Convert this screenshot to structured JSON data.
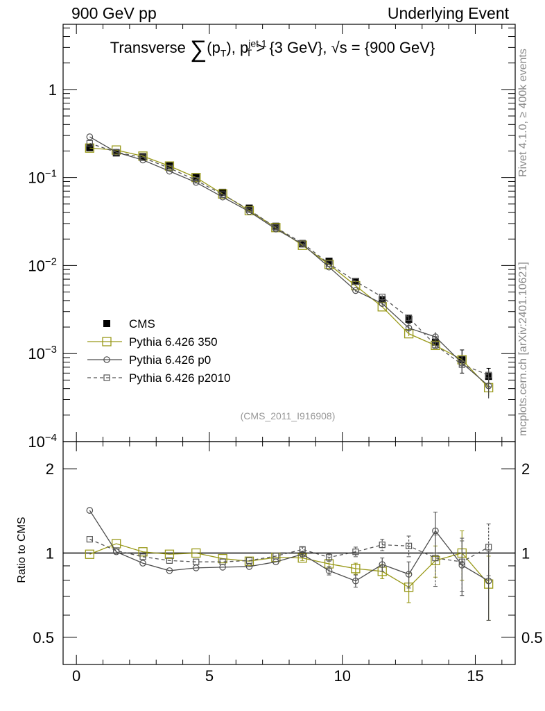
{
  "header": {
    "left": "900 GeV pp",
    "right": "Underlying Event"
  },
  "side_labels": {
    "rivet": "Rivet 4.1.0, ≥ 400k events",
    "mcplots": "mcplots.cern.ch [arXiv:2401.10621]"
  },
  "title": {
    "prefix": "Transverse",
    "sigma": "∑",
    "paren_open": "(p",
    "sub_t1": "T",
    "paren_close": "), p",
    "sup_jet": "jet 1",
    "sub_t2": "T",
    "suffix": " > {3 GeV}, √s = {900 GeV}"
  },
  "analysis_id": "(CMS_2011_I916908)",
  "chart_data": {
    "type": "line",
    "title": "Transverse ∑(p_T), p_T^jet 1 > {3 GeV}, √s = {900 GeV}",
    "xlim": [
      -0.5,
      16.5
    ],
    "x_ticks": [
      0,
      5,
      10,
      15
    ],
    "x_tick_labels": [
      "0",
      "5",
      "10",
      "15"
    ],
    "x": [
      0.5,
      1.5,
      2.5,
      3.5,
      4.5,
      5.5,
      6.5,
      7.5,
      8.5,
      9.5,
      10.5,
      11.5,
      12.5,
      13.5,
      14.5,
      15.5
    ],
    "main_panel": {
      "yscale": "log",
      "ylim": [
        0.0001,
        5.5
      ],
      "y_ticks": [
        0.0001,
        0.001,
        0.01,
        0.1,
        1
      ],
      "y_tick_labels": [
        "10−4",
        "10−3",
        "10−2",
        "10−1",
        "1"
      ],
      "legend_position": "bottom-left",
      "series": [
        {
          "name": "CMS",
          "style": "data",
          "color": "#000000",
          "values": [
            0.218,
            0.19,
            0.172,
            0.136,
            0.1,
            0.068,
            0.045,
            0.028,
            0.0176,
            0.0112,
            0.0066,
            0.0041,
            0.00245,
            0.00135,
            0.00085,
            0.00055
          ],
          "errors": [
            0.008,
            0.006,
            0.005,
            0.004,
            0.003,
            0.0025,
            0.0017,
            0.001,
            0.0007,
            0.0005,
            0.0003,
            0.0002,
            0.00025,
            0.0002,
            0.00025,
            0.00013
          ]
        },
        {
          "name": "Pythia 6.426 350",
          "style": "open-square-solid",
          "color": "#999919",
          "values": [
            0.216,
            0.205,
            0.175,
            0.135,
            0.1,
            0.065,
            0.042,
            0.027,
            0.017,
            0.0103,
            0.0059,
            0.0034,
            0.00168,
            0.00124,
            0.00085,
            0.00041
          ],
          "errors": [
            0,
            0,
            0,
            0,
            0,
            0,
            0,
            0,
            0,
            0,
            0,
            0,
            0.0001,
            0.0001,
            0.00012,
            8e-05
          ]
        },
        {
          "name": "Pythia 6.426 p0",
          "style": "open-circle-solid",
          "color": "#4d4d4d",
          "values": [
            0.29,
            0.194,
            0.158,
            0.118,
            0.088,
            0.06,
            0.041,
            0.026,
            0.0175,
            0.0096,
            0.0052,
            0.0037,
            0.00195,
            0.00155,
            0.00078,
            0.00043
          ],
          "errors": [
            0,
            0,
            0,
            0,
            0,
            0,
            0,
            0,
            0,
            0,
            0.0002,
            0.0002,
            0.0002,
            0.0002,
            0.00017,
            0.00012
          ]
        },
        {
          "name": "Pythia 6.426 p2010",
          "style": "open-square-dashed",
          "color": "#555555",
          "values": [
            0.245,
            0.194,
            0.168,
            0.128,
            0.093,
            0.064,
            0.043,
            0.027,
            0.018,
            0.0105,
            0.0066,
            0.0044,
            0.00255,
            0.00125,
            0.00075,
            0.00057
          ],
          "errors": [
            0,
            0,
            0,
            0,
            0,
            0,
            0,
            0,
            0,
            0,
            0.0002,
            0.0002,
            0.0002,
            0.0001,
            0.00012,
            9e-05
          ]
        }
      ]
    },
    "ratio_panel": {
      "ylabel": "Ratio to CMS",
      "yscale": "log",
      "ylim": [
        0.4,
        2.5
      ],
      "y_ticks": [
        0.5,
        1,
        2
      ],
      "y_tick_labels": [
        "0.5",
        "1",
        "2"
      ],
      "series": [
        {
          "name": "Pythia 6.426 350",
          "color": "#999919",
          "values": [
            0.99,
            1.08,
            1.01,
            0.99,
            1.0,
            0.955,
            0.935,
            0.965,
            0.96,
            0.915,
            0.88,
            0.86,
            0.755,
            0.94,
            1.0,
            0.775
          ],
          "errors": [
            0.01,
            0.01,
            0.01,
            0.01,
            0.01,
            0.01,
            0.01,
            0.015,
            0.02,
            0.03,
            0.04,
            0.05,
            0.09,
            0.12,
            0.2,
            0.2
          ]
        },
        {
          "name": "Pythia 6.426 p0",
          "color": "#4d4d4d",
          "values": [
            1.42,
            1.01,
            0.92,
            0.865,
            0.885,
            0.89,
            0.895,
            0.93,
            0.99,
            0.865,
            0.795,
            0.91,
            0.84,
            1.2,
            0.905,
            0.795
          ],
          "errors": [
            0.01,
            0.01,
            0.01,
            0.01,
            0.01,
            0.01,
            0.01,
            0.015,
            0.02,
            0.03,
            0.04,
            0.05,
            0.09,
            0.2,
            0.2,
            0.22
          ]
        },
        {
          "name": "Pythia 6.426 p2010",
          "color": "#555555",
          "values": [
            1.12,
            1.02,
            0.97,
            0.94,
            0.93,
            0.93,
            0.94,
            0.975,
            1.03,
            0.965,
            1.01,
            1.07,
            1.06,
            0.96,
            0.93,
            1.05
          ],
          "errors": [
            0.01,
            0.01,
            0.01,
            0.01,
            0.01,
            0.01,
            0.01,
            0.015,
            0.02,
            0.03,
            0.04,
            0.05,
            0.09,
            0.2,
            0.2,
            0.22
          ]
        }
      ]
    }
  }
}
